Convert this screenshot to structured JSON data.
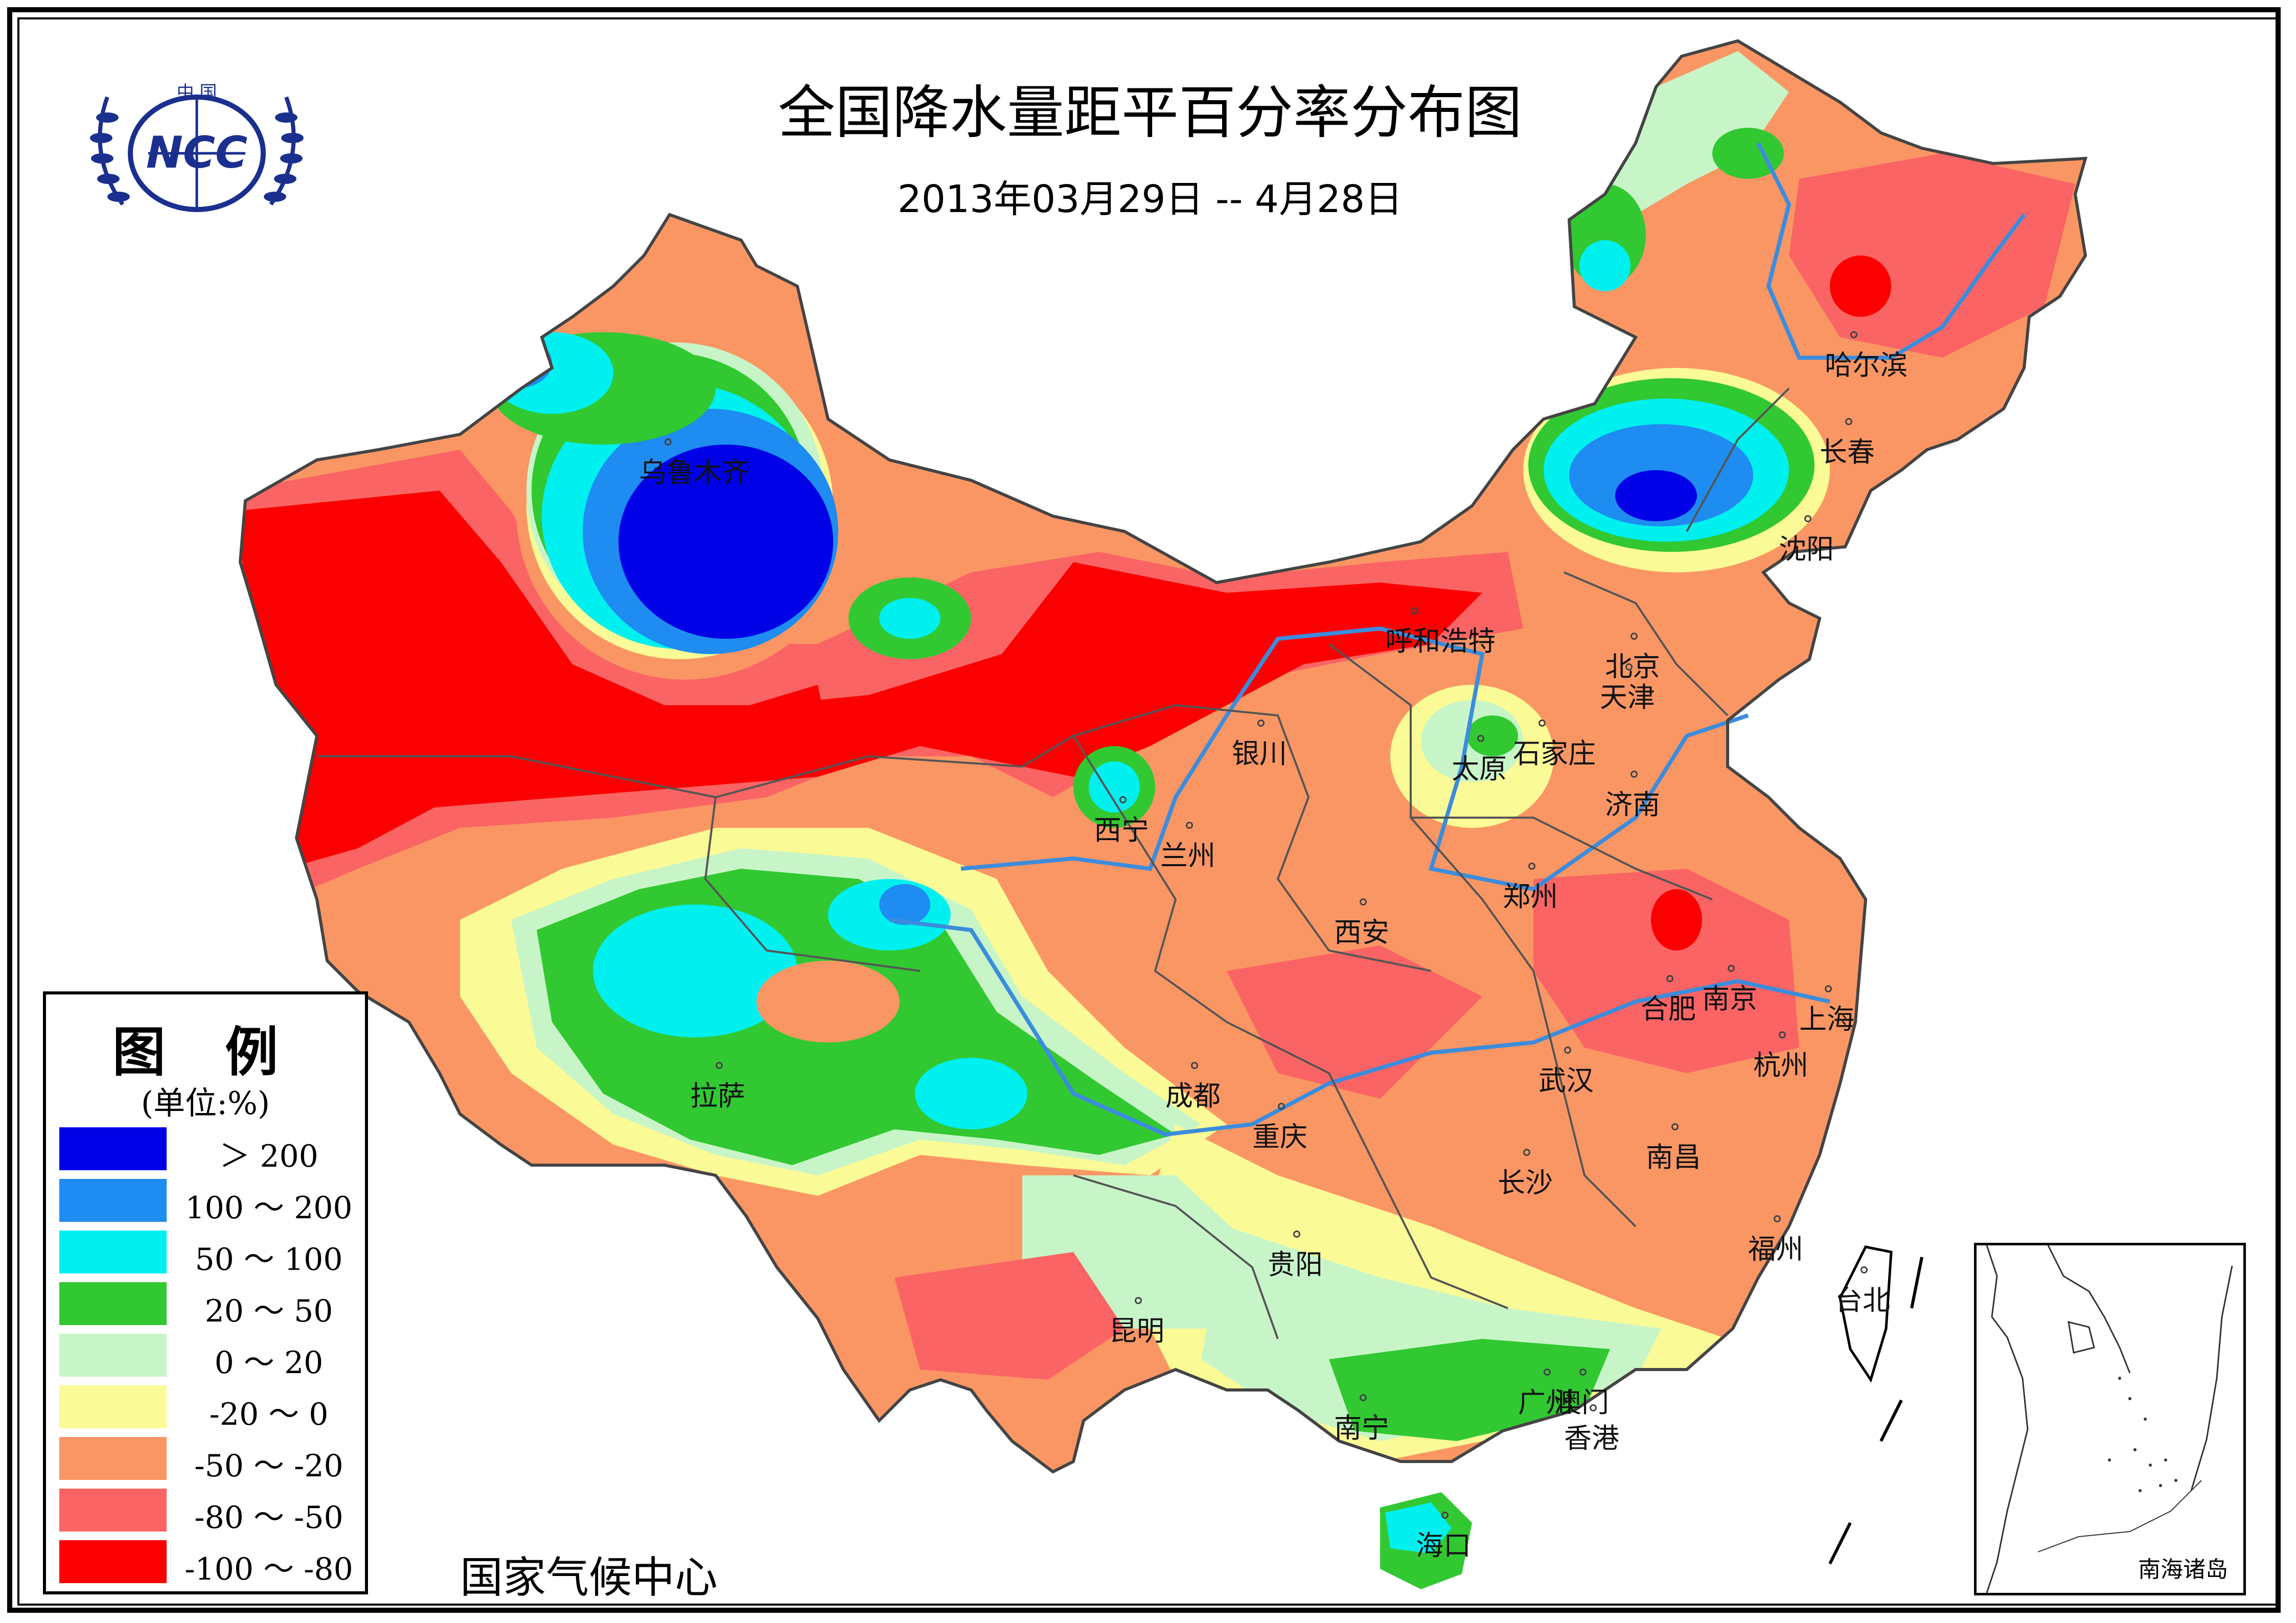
{
  "header": {
    "title": "全国降水量距平百分率分布图",
    "subtitle": "2013年03月29日 -- 4月28日"
  },
  "logo": {
    "top_text": "中 国",
    "name": "NCC",
    "icon": "ncc-globe-laurel-logo"
  },
  "organization": "国家气候中心",
  "legend": {
    "title": "图 例",
    "unit": "(单位:%)",
    "items": [
      {
        "label": "＞ 200",
        "color": "#0000e6"
      },
      {
        "label": "100 ～ 200",
        "color": "#1e8cf0"
      },
      {
        "label": "50 ～ 100",
        "color": "#00f0f0"
      },
      {
        "label": "20 ～ 50",
        "color": "#32c832"
      },
      {
        "label": "0 ～ 20",
        "color": "#c8f5c8"
      },
      {
        "label": "-20 ～ 0",
        "color": "#fafa96"
      },
      {
        "label": "-50 ～ -20",
        "color": "#fa9664"
      },
      {
        "label": "-80 ～ -50",
        "color": "#fa6464"
      },
      {
        "label": "-100 ～ -80",
        "color": "#fa0000"
      }
    ]
  },
  "cities": [
    {
      "name": "乌鲁木齐"
    },
    {
      "name": "哈尔滨"
    },
    {
      "name": "长春"
    },
    {
      "name": "沈阳"
    },
    {
      "name": "呼和浩特"
    },
    {
      "name": "北京"
    },
    {
      "name": "天津"
    },
    {
      "name": "银川"
    },
    {
      "name": "太原"
    },
    {
      "name": "石家庄"
    },
    {
      "name": "济南"
    },
    {
      "name": "西宁"
    },
    {
      "name": "兰州"
    },
    {
      "name": "郑州"
    },
    {
      "name": "西安"
    },
    {
      "name": "合肥"
    },
    {
      "name": "南京"
    },
    {
      "name": "上海"
    },
    {
      "name": "拉萨"
    },
    {
      "name": "成都"
    },
    {
      "name": "武汉"
    },
    {
      "name": "杭州"
    },
    {
      "name": "重庆"
    },
    {
      "name": "南昌"
    },
    {
      "name": "长沙"
    },
    {
      "name": "福州"
    },
    {
      "name": "贵阳"
    },
    {
      "name": "台北"
    },
    {
      "name": "昆明"
    },
    {
      "name": "广州"
    },
    {
      "name": "澳门"
    },
    {
      "name": "香港"
    },
    {
      "name": "南宁"
    },
    {
      "name": "海口"
    }
  ],
  "inset": {
    "label": "南海诸岛"
  }
}
